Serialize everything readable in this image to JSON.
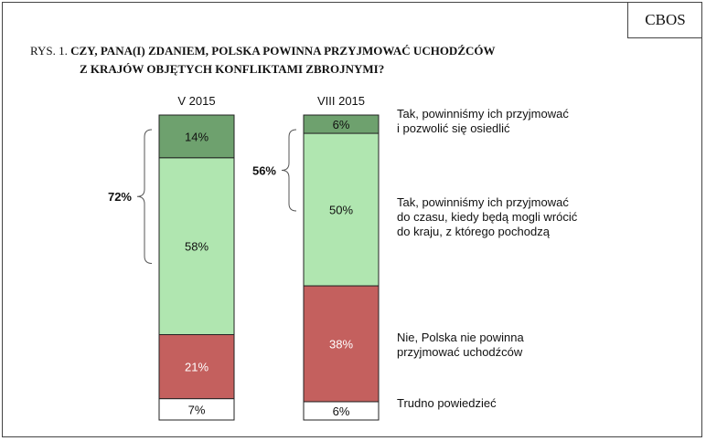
{
  "badge": "CBOS",
  "figure": {
    "prefix": "RYS. 1.",
    "question_line1": "CZY, PANA(I) ZDANIEM, POLSKA POWINNA PRZYJMOWAĆ UCHODŹCÓW",
    "question_line2": "Z KRAJÓW OBJĘTYCH KONFLIKTAMI ZBROJNYMI?"
  },
  "colors": {
    "tak_osiedlic": "#6ea16e",
    "tak_do_czasu": "#b0e6b0",
    "nie": "#c4605e",
    "trudno": "#ffffff"
  },
  "chart_data": {
    "type": "bar",
    "stacked": true,
    "unit": "%",
    "categories": [
      "V 2015",
      "VIII 2015"
    ],
    "series": [
      {
        "name": "Trudno powiedzieć",
        "values": [
          7,
          6
        ],
        "labels": [
          "7%",
          "6%"
        ],
        "color_key": "trudno"
      },
      {
        "name": "Nie, Polska nie powinna przyjmować uchodźców",
        "values": [
          21,
          38
        ],
        "labels": [
          "21%",
          "38%"
        ],
        "color_key": "nie"
      },
      {
        "name": "Tak, powinniśmy ich przyjmować do czasu, kiedy będą mogli wrócić do kraju, z którego pochodzą",
        "values": [
          58,
          50
        ],
        "labels": [
          "58%",
          "50%"
        ],
        "color_key": "tak_do_czasu"
      },
      {
        "name": "Tak, powinniśmy ich przyjmować i pozwolić się osiedlić",
        "values": [
          14,
          6
        ],
        "labels": [
          "14%",
          "6%"
        ],
        "color_key": "tak_osiedlic"
      }
    ],
    "totals": [
      {
        "category": "V 2015",
        "label": "72%",
        "value": 72
      },
      {
        "category": "VIII 2015",
        "label": "56%",
        "value": 56
      }
    ],
    "legend_labels": [
      {
        "series_index": 3,
        "lines": [
          "Tak, powinniśmy ich przyjmować",
          "i pozwolić się osiedlić"
        ]
      },
      {
        "series_index": 2,
        "lines": [
          "Tak, powinniśmy ich przyjmować",
          "do czasu, kiedy będą mogli wrócić",
          "do kraju, z którego pochodzą"
        ]
      },
      {
        "series_index": 1,
        "lines": [
          "Nie, Polska nie powinna",
          "przyjmować uchodźców"
        ]
      },
      {
        "series_index": 0,
        "lines": [
          "Trudno powiedzieć"
        ]
      }
    ],
    "legend_position": "right",
    "ylim": [
      0,
      100
    ],
    "grid": false
  }
}
